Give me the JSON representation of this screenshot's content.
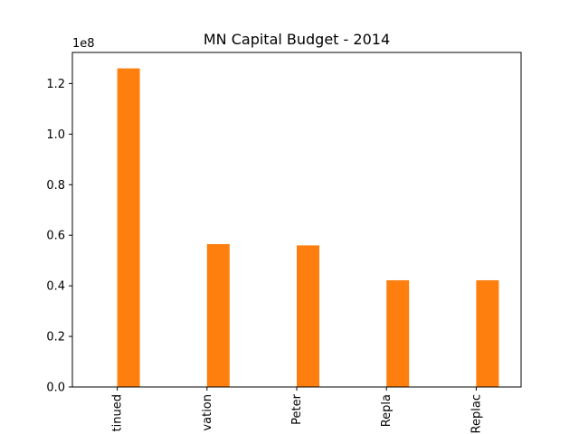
{
  "chart_data": {
    "type": "bar",
    "title": "MN Capital Budget - 2014",
    "xlabel": "",
    "ylabel": "",
    "categories": [
      "tinued",
      "vation",
      "Peter",
      "Repla",
      "Replac"
    ],
    "values": [
      126000000,
      56500000,
      56000000,
      42200000,
      42200000
    ],
    "ylim": [
      0,
      132300000
    ],
    "yticks": [
      0,
      20000000,
      40000000,
      60000000,
      80000000,
      100000000,
      120000000
    ],
    "ytick_labels": [
      "0.0",
      "0.2",
      "0.4",
      "0.6",
      "0.8",
      "1.0",
      "1.2"
    ],
    "y_offset_label": "1e8",
    "bar_color": "#ff7f0e",
    "grid": false,
    "legend": "none"
  }
}
